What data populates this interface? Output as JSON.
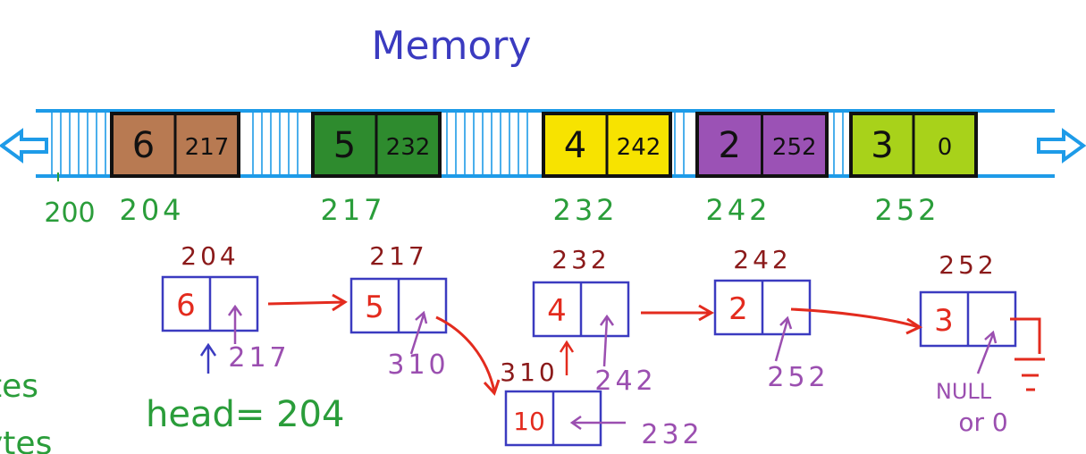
{
  "title": "Memory",
  "colors": {
    "band": "#1e9be8",
    "address": "#2a9d3a",
    "node_address": "#8b1a1a",
    "node_box": "#3b3bc0",
    "node_value": "#e32b1e",
    "pointer_label": "#9b4fb0",
    "arrow": "#e32b1e",
    "head": "#3b3bc0"
  },
  "memory_blocks": [
    {
      "value": "6",
      "next": "217",
      "address": "204",
      "fill": "#b87a52"
    },
    {
      "value": "5",
      "next": "232",
      "address": "217",
      "fill": "#2e8b2e"
    },
    {
      "value": "4",
      "next": "242",
      "address": "232",
      "fill": "#f7e300"
    },
    {
      "value": "2",
      "next": "252",
      "address": "242",
      "fill": "#9b52b5"
    },
    {
      "value": "3",
      "next": "0",
      "address": "252",
      "fill": "#a8d21a"
    }
  ],
  "start_address": "200",
  "nodes": [
    {
      "address": "204",
      "value": "6",
      "pointer": "217"
    },
    {
      "address": "217",
      "value": "5",
      "pointer": "310"
    },
    {
      "address": "232",
      "value": "4",
      "pointer": "242"
    },
    {
      "address": "242",
      "value": "2",
      "pointer": "252"
    },
    {
      "address": "252",
      "value": "3",
      "pointer": "NULL"
    },
    {
      "address": "310",
      "value": "10",
      "pointer": "232"
    }
  ],
  "null_label_1": "NULL",
  "null_label_2": "or 0",
  "head_label": "head= 204",
  "left_fragments": [
    "tes",
    "ytes"
  ]
}
